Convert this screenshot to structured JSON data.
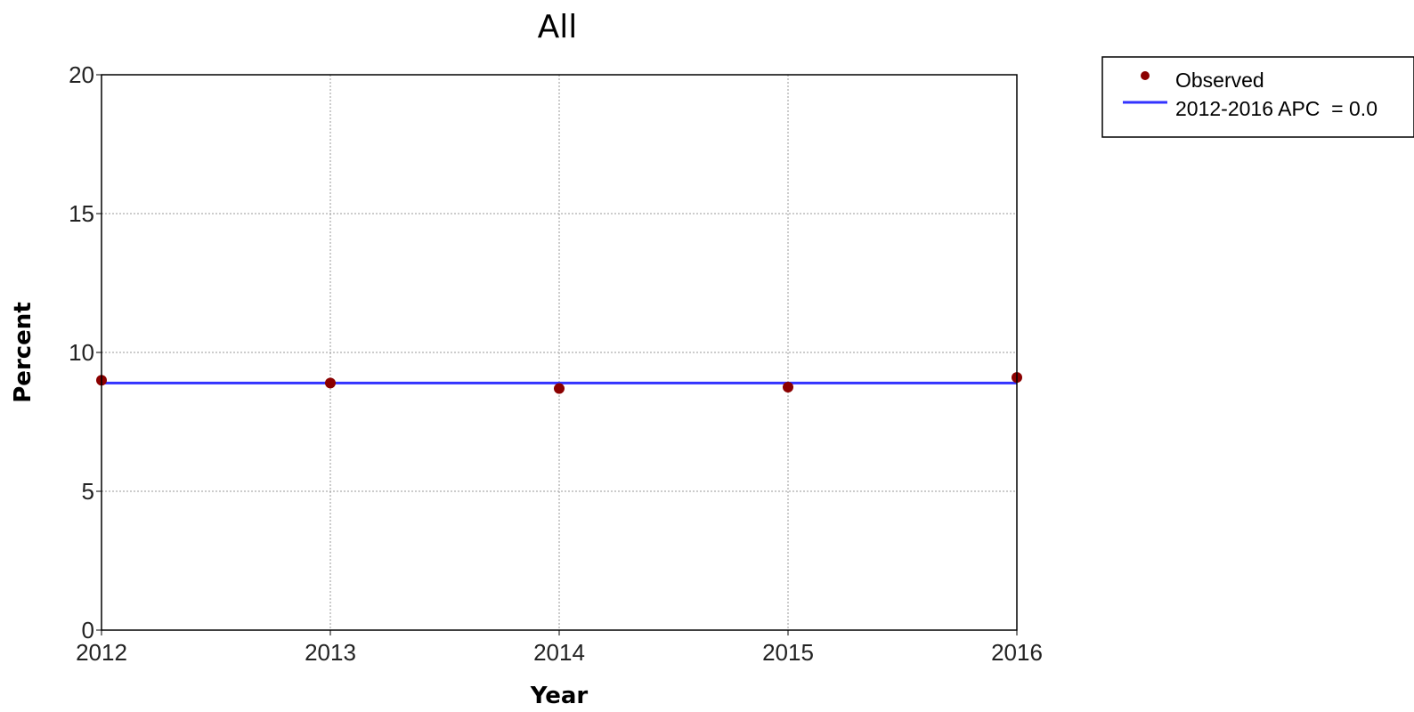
{
  "chart_data": {
    "type": "line",
    "title": "All",
    "xlabel": "Year",
    "ylabel": "Percent",
    "xlim": [
      2012,
      2016
    ],
    "ylim": [
      0,
      20
    ],
    "x_ticks": [
      2012,
      2013,
      2014,
      2015,
      2016
    ],
    "y_ticks": [
      0,
      5,
      10,
      15,
      20
    ],
    "grid": true,
    "legend_position": "right-top-outside",
    "series": [
      {
        "name": "Observed",
        "kind": "scatter",
        "color": "#8b0000",
        "x": [
          2012,
          2013,
          2014,
          2015,
          2016
        ],
        "y": [
          9.0,
          8.9,
          8.7,
          8.75,
          9.1
        ]
      },
      {
        "name": "2012-2016 APC  = 0.0",
        "kind": "line",
        "color": "#3333ff",
        "x": [
          2012,
          2016
        ],
        "y": [
          8.9,
          8.9
        ]
      }
    ]
  }
}
